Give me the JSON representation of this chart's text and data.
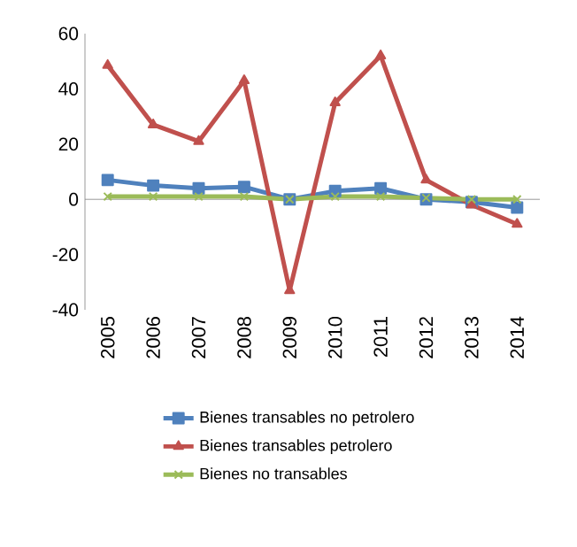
{
  "chart_data": {
    "type": "line",
    "categories": [
      "2005",
      "2006",
      "2007",
      "2008",
      "2009",
      "2010",
      "2011",
      "2012",
      "2013",
      "2014"
    ],
    "series": [
      {
        "name": "Bienes transables no petrolero",
        "color": "#4f81bd",
        "marker": "square",
        "values": [
          7,
          5,
          4,
          4.5,
          0,
          3,
          4,
          0,
          -1,
          -3
        ]
      },
      {
        "name": "Bienes transables petrolero",
        "color": "#c0504d",
        "marker": "triangle",
        "values": [
          48.5,
          27,
          21,
          43,
          -33,
          35,
          52,
          7,
          -2,
          -9
        ]
      },
      {
        "name": "Bienes no transables",
        "color": "#9bbb59",
        "marker": "cross",
        "values": [
          1,
          1,
          1,
          1,
          0,
          1,
          1,
          0.5,
          0,
          0
        ]
      }
    ],
    "ylim": [
      -40,
      60
    ],
    "yticks": [
      -40,
      -20,
      0,
      20,
      40,
      60
    ],
    "legend": "bottom"
  }
}
